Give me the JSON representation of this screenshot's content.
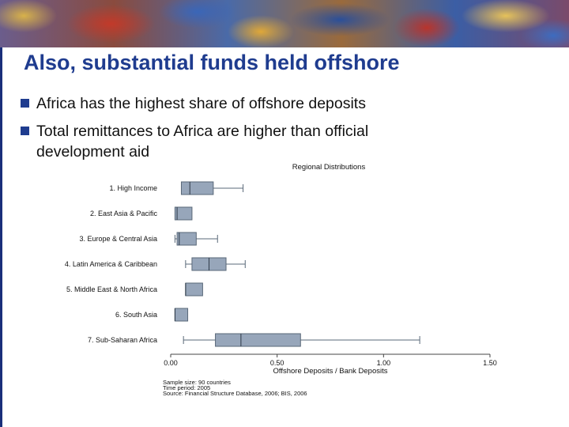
{
  "slide": {
    "title": "Also, substantial funds held offshore",
    "bullets": [
      "Africa has the highest share of offshore deposits",
      "Total remittances to Africa are higher than official",
      "development aid"
    ],
    "accent_color": "#1f3c8f"
  },
  "chart_data": {
    "type": "boxplot",
    "title": "Regional Distributions",
    "xlabel": "Offshore Deposits / Bank Deposits",
    "xlim": [
      0,
      1.5
    ],
    "xticks": [
      "0.00",
      "0.50",
      "1.00",
      "1.50"
    ],
    "categories": [
      "1. High Income",
      "2. East Asia & Pacific",
      "3. Europe & Central Asia",
      "4. Latin America & Caribbean",
      "5. Middle East & North Africa",
      "6. South Asia",
      "7. Sub-Saharan Africa"
    ],
    "boxes": [
      {
        "min": 0.05,
        "q1": 0.05,
        "median": 0.09,
        "q3": 0.2,
        "max": 0.34
      },
      {
        "min": 0.02,
        "q1": 0.02,
        "median": 0.03,
        "q3": 0.1,
        "max": 0.1
      },
      {
        "min": 0.02,
        "q1": 0.03,
        "median": 0.04,
        "q3": 0.12,
        "max": 0.22
      },
      {
        "min": 0.07,
        "q1": 0.1,
        "median": 0.18,
        "q3": 0.26,
        "max": 0.35
      },
      {
        "min": 0.07,
        "q1": 0.07,
        "median": 0.07,
        "q3": 0.15,
        "max": 0.15
      },
      {
        "min": 0.02,
        "q1": 0.02,
        "median": 0.02,
        "q3": 0.08,
        "max": 0.08
      },
      {
        "min": 0.06,
        "q1": 0.21,
        "median": 0.33,
        "q3": 0.61,
        "max": 1.17
      }
    ],
    "notes": [
      "Sample size: 90 countries",
      "Time period: 2005",
      "Source: Financial Structure Database, 2006; BIS, 2006"
    ],
    "box_color": "#97a6ba"
  }
}
